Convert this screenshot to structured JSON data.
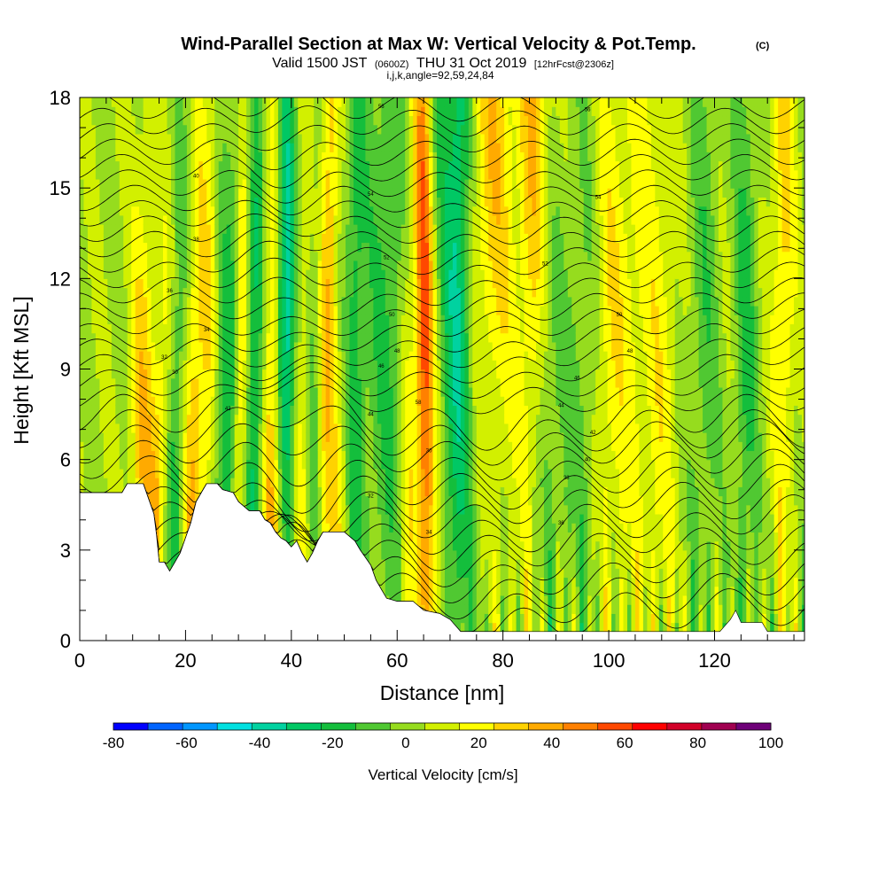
{
  "title": {
    "main": "Wind-Parallel Section at Max W: Vertical Velocity & Pot.Temp.",
    "copyright": "(C)",
    "valid_prefix": "Valid 1500 JST",
    "valid_utc": "(0600Z)",
    "valid_date": "THU 31 Oct 2019",
    "forecast": "[12hrFcst@2306z]",
    "indices": "i,j,k,angle=92,59,24,84"
  },
  "chart_data": {
    "type": "heatmap",
    "xlabel": "Distance [nm]",
    "ylabel": "Height [Kft MSL]",
    "xlim": [
      0,
      137
    ],
    "ylim": [
      0,
      18
    ],
    "x_ticks": [
      0,
      20,
      40,
      60,
      80,
      100,
      120
    ],
    "y_ticks": [
      0,
      3,
      6,
      9,
      12,
      15,
      18
    ],
    "colorbar": {
      "title": "Vertical Velocity [cm/s]",
      "range": [
        -80,
        100
      ],
      "tick_values": [
        -80,
        -60,
        -40,
        -20,
        0,
        20,
        40,
        60,
        80,
        100
      ],
      "tick_labels": [
        "-80",
        "-60",
        "-40",
        "-20",
        "0",
        "20",
        "40",
        "60",
        "80",
        "100"
      ],
      "colors": [
        "#0000ff",
        "#0064ff",
        "#0096ff",
        "#00e0e0",
        "#00d2a0",
        "#00c864",
        "#14be3c",
        "#50c832",
        "#96dc1e",
        "#d2f000",
        "#ffff00",
        "#ffd200",
        "#ffaa00",
        "#ff8000",
        "#ff4800",
        "#ff0000",
        "#d20028",
        "#a00050",
        "#6e0078"
      ]
    },
    "terrain_kft": [
      [
        0,
        4.9
      ],
      [
        8,
        4.9
      ],
      [
        9,
        5.2
      ],
      [
        12,
        5.2
      ],
      [
        13,
        4.7
      ],
      [
        14,
        4.2
      ],
      [
        14.5,
        3.5
      ],
      [
        15,
        2.6
      ],
      [
        16,
        2.6
      ],
      [
        17,
        2.3
      ],
      [
        18,
        2.6
      ],
      [
        19,
        2.9
      ],
      [
        20,
        3.4
      ],
      [
        21,
        3.9
      ],
      [
        22,
        4.6
      ],
      [
        23,
        4.9
      ],
      [
        24,
        5.2
      ],
      [
        26,
        5.2
      ],
      [
        27,
        5.0
      ],
      [
        29,
        4.9
      ],
      [
        30,
        4.6
      ],
      [
        32,
        4.3
      ],
      [
        34,
        4.3
      ],
      [
        35,
        4.0
      ],
      [
        36,
        3.9
      ],
      [
        37,
        3.6
      ],
      [
        38,
        3.4
      ],
      [
        39,
        3.3
      ],
      [
        40,
        3.1
      ],
      [
        41,
        3.3
      ],
      [
        42,
        2.9
      ],
      [
        43,
        2.6
      ],
      [
        44,
        2.9
      ],
      [
        45,
        3.3
      ],
      [
        46,
        3.6
      ],
      [
        48,
        3.6
      ],
      [
        50,
        3.6
      ],
      [
        52,
        3.3
      ],
      [
        53,
        3.0
      ],
      [
        55,
        2.5
      ],
      [
        56,
        2.0
      ],
      [
        57,
        1.7
      ],
      [
        58,
        1.4
      ],
      [
        60,
        1.3
      ],
      [
        63,
        1.3
      ],
      [
        65,
        1.0
      ],
      [
        68,
        0.9
      ],
      [
        70,
        0.7
      ],
      [
        72,
        0.3
      ],
      [
        80,
        0.3
      ],
      [
        100,
        0.3
      ],
      [
        121,
        0.3
      ],
      [
        123,
        0.7
      ],
      [
        124,
        1.0
      ],
      [
        125,
        0.6
      ],
      [
        129,
        0.6
      ],
      [
        130,
        0.3
      ],
      [
        137,
        0.3
      ]
    ],
    "theta_contour_labels": [
      "30",
      "32",
      "34",
      "36",
      "38",
      "40",
      "42",
      "44",
      "46",
      "48",
      "50",
      "52",
      "54",
      "56",
      "58"
    ]
  }
}
